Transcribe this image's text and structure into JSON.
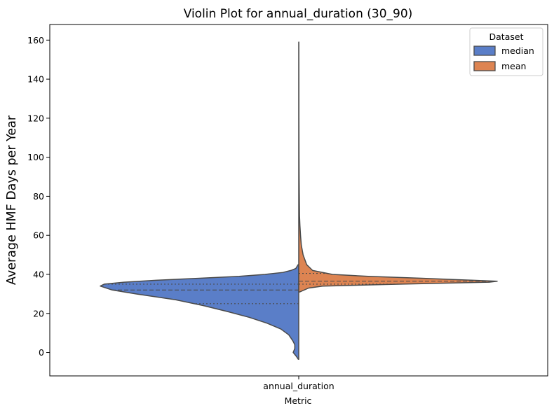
{
  "chart_data": {
    "type": "violin",
    "title": "Violin Plot for annual_duration (30_90)",
    "xlabel": "Metric",
    "ylabel": "Average HMF Days per Year",
    "categories": [
      "annual_duration"
    ],
    "ylim": [
      -12,
      168
    ],
    "yticks": [
      0,
      20,
      40,
      60,
      80,
      100,
      120,
      140,
      160
    ],
    "grid": false,
    "legend": {
      "title": "Dataset",
      "placement": "top-right"
    },
    "series": [
      {
        "name": "median",
        "color": "#5a7ec8",
        "side": "left",
        "quartiles": {
          "q1": 25.0,
          "median": 32.0,
          "q3": 35.0
        },
        "density": [
          [
            -3.5,
            0.002
          ],
          [
            -2,
            0.012
          ],
          [
            0,
            0.028
          ],
          [
            2,
            0.02
          ],
          [
            4,
            0.02
          ],
          [
            6,
            0.03
          ],
          [
            9,
            0.05
          ],
          [
            12,
            0.09
          ],
          [
            15,
            0.16
          ],
          [
            18,
            0.25
          ],
          [
            21,
            0.36
          ],
          [
            24,
            0.48
          ],
          [
            27,
            0.62
          ],
          [
            30,
            0.82
          ],
          [
            32,
            0.94
          ],
          [
            34,
            1.0
          ],
          [
            35,
            0.98
          ],
          [
            36,
            0.88
          ],
          [
            37,
            0.72
          ],
          [
            38,
            0.5
          ],
          [
            39,
            0.3
          ],
          [
            40,
            0.17
          ],
          [
            41,
            0.08
          ],
          [
            42,
            0.04
          ],
          [
            43,
            0.015
          ],
          [
            45,
            0.003
          ]
        ]
      },
      {
        "name": "mean",
        "color": "#dd8452",
        "side": "right",
        "quartiles": {
          "q1": 35.0,
          "median": 36.5,
          "q3": 40.5
        },
        "density": [
          [
            31,
            0.005
          ],
          [
            33,
            0.05
          ],
          [
            34,
            0.12
          ],
          [
            35,
            0.52
          ],
          [
            36,
            0.96
          ],
          [
            36.5,
            1.0
          ],
          [
            37,
            0.88
          ],
          [
            38,
            0.62
          ],
          [
            39,
            0.35
          ],
          [
            40,
            0.17
          ],
          [
            42,
            0.07
          ],
          [
            45,
            0.04
          ],
          [
            50,
            0.022
          ],
          [
            55,
            0.013
          ],
          [
            60,
            0.009
          ],
          [
            65,
            0.006
          ],
          [
            70,
            0.004
          ],
          [
            80,
            0.003
          ],
          [
            90,
            0.002
          ],
          [
            100,
            0.0015
          ],
          [
            120,
            0.001
          ],
          [
            140,
            0.0008
          ],
          [
            159,
            0.0005
          ]
        ]
      }
    ]
  }
}
